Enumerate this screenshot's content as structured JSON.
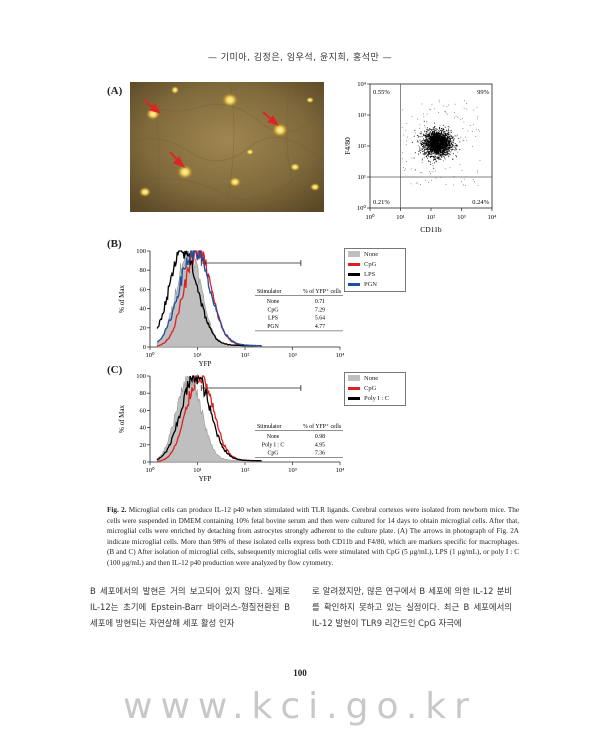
{
  "header": {
    "authors": "— 기미아, 김정은, 임우석, 윤지희, 홍석만 —"
  },
  "panels": {
    "a_label": "(A)",
    "b_label": "(B)",
    "c_label": "(C)"
  },
  "chart_data": [
    {
      "type": "scatter",
      "panel": "A",
      "xlabel": "CD11b",
      "ylabel": "F4/80",
      "x_scale": "log",
      "y_scale": "log",
      "xlim": [
        1,
        10000
      ],
      "ylim": [
        1,
        10000
      ],
      "x_ticks": [
        "10⁰",
        "10¹",
        "10²",
        "10³",
        "10⁴"
      ],
      "y_ticks": [
        "10⁰",
        "10¹",
        "10²",
        "10³",
        "10⁴"
      ],
      "quadrants": {
        "top_left": "0.55%",
        "top_right": "99%",
        "bottom_left": "0.21%",
        "bottom_right": "0.24%"
      },
      "gate": {
        "x": 10,
        "y": 10
      }
    },
    {
      "type": "line",
      "panel": "B",
      "xlabel": "YFP",
      "ylabel": "% of Max",
      "x_scale": "log",
      "xlim": [
        1,
        10000
      ],
      "ylim": [
        0,
        100
      ],
      "x_ticks": [
        "10⁰",
        "10¹",
        "10²",
        "10³",
        "10⁴"
      ],
      "y_ticks": [
        "0",
        "20",
        "40",
        "60",
        "80",
        "100"
      ],
      "legend": {
        "placement": "right",
        "entries": [
          {
            "name": "None",
            "color": "#bfbfbf"
          },
          {
            "name": "CpG",
            "color": "#e02020"
          },
          {
            "name": "LPS",
            "color": "#000000"
          },
          {
            "name": "PGN",
            "color": "#1f4fa0"
          }
        ]
      },
      "series": [
        {
          "name": "None",
          "color": "#bfbfbf",
          "filled": true,
          "peak_x": 6.5
        },
        {
          "name": "CpG",
          "color": "#e02020",
          "filled": false,
          "peak_x": 10
        },
        {
          "name": "LPS",
          "color": "#000000",
          "filled": false,
          "peak_x": 5
        },
        {
          "name": "PGN",
          "color": "#1f4fa0",
          "filled": false,
          "peak_x": 8.5
        }
      ],
      "gate_range": [
        12,
        1500
      ],
      "table": {
        "headers": [
          "Stimulator",
          "% of YFP⁺ cells"
        ],
        "rows": [
          [
            "None",
            "0.71"
          ],
          [
            "CpG",
            "7.29"
          ],
          [
            "LPS",
            "5.64"
          ],
          [
            "PGN",
            "4.77"
          ]
        ]
      }
    },
    {
      "type": "line",
      "panel": "C",
      "xlabel": "YFP",
      "ylabel": "% of Max",
      "x_scale": "log",
      "xlim": [
        1,
        10000
      ],
      "ylim": [
        0,
        100
      ],
      "x_ticks": [
        "10⁰",
        "10¹",
        "10²",
        "10³",
        "10⁴"
      ],
      "y_ticks": [
        "0",
        "20",
        "40",
        "60",
        "80",
        "100"
      ],
      "legend": {
        "placement": "right",
        "entries": [
          {
            "name": "None",
            "color": "#bfbfbf"
          },
          {
            "name": "CpG",
            "color": "#e02020"
          },
          {
            "name": "Poly I : C",
            "color": "#000000"
          }
        ]
      },
      "series": [
        {
          "name": "None",
          "color": "#bfbfbf",
          "filled": true,
          "peak_x": 6.5
        },
        {
          "name": "CpG",
          "color": "#e02020",
          "filled": false,
          "peak_x": 11
        },
        {
          "name": "Poly I : C",
          "color": "#000000",
          "filled": false,
          "peak_x": 9
        }
      ],
      "gate_range": [
        12,
        1500
      ],
      "table": {
        "headers": [
          "Stimulator",
          "% of YFP⁺ cells"
        ],
        "rows": [
          [
            "None",
            "0.98"
          ],
          [
            "Poly I : C",
            "4.95"
          ],
          [
            "CpG",
            "7.36"
          ]
        ]
      }
    }
  ],
  "caption": {
    "label": "Fig. 2.",
    "text": "Microglial cells can produce IL-12 p40 when stimulated with TLR ligands. Cerebral cortexes were isolated from newborn mice. The cells were suspended in DMEM containing 10% fetal bovine serum and then were cultured for 14 days to obtain microglial cells. After that, microglial cells were enriched by detaching from astrocytes strongly adherent to the culture plate. (A) The arrows in photograph of Fig. 2A indicate microglial cells. More than 98% of these isolated cells express both CD11b and F4/80, which are markers specific for macrophages. (B and C) After isolation of microglial cells, subsequently microglial cells were stimulated with CpG (5 μg/mL), LPS (1 μg/mL), or poly I : C (100 μg/mL) and then IL-12 p40 production were analyzed by flow cytometry."
  },
  "body": {
    "left": "B 세포에서의 발현은 거의 보고되어 있지 않다. 실제로 IL-12는 초기에 Epstein-Barr 바이러스-형질전환된 B 세포에 방현되는 자연살해 세포 활성 인자",
    "right": "로 알려졌지만, 많은 연구에서 B 세포에 의한 IL-12 분비를 확인하지 못하고 있는 실정이다. 최근 B 세포에서의 IL-12 발현이 TLR9 리간드인 CpG 자극에"
  },
  "page_number": "100",
  "watermark": "www.kci.go.kr"
}
